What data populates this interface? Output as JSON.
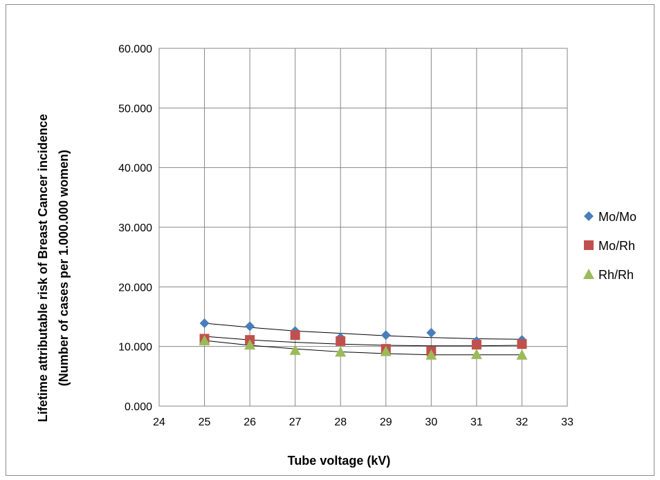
{
  "chart_data": {
    "type": "scatter",
    "xlabel": "Tube voltage (kV)",
    "ylabel_line1": "Lifetime attributable risk of Breast Cancer incidence",
    "ylabel_line2": "(Number of cases per 1.000.000 women)",
    "xlim": [
      24,
      33
    ],
    "ylim": [
      0,
      60
    ],
    "x_ticks": [
      24,
      25,
      26,
      27,
      28,
      29,
      30,
      31,
      32,
      33
    ],
    "y_ticks": [
      0,
      10,
      20,
      30,
      40,
      50,
      60
    ],
    "y_tick_labels": [
      "0.000",
      "10.000",
      "20.000",
      "30.000",
      "40.000",
      "50.000",
      "60.000"
    ],
    "grid": true,
    "legend_position": "right",
    "series": [
      {
        "name": "Mo/Mo",
        "marker": "diamond",
        "color": "#4a7ebb",
        "x": [
          25,
          26,
          27,
          28,
          29,
          30,
          31,
          32
        ],
        "y": [
          13.9,
          13.4,
          12.6,
          11.5,
          11.9,
          12.3,
          10.9,
          11.1
        ],
        "trend": [
          13.9,
          13.2,
          12.6,
          12.2,
          11.8,
          11.5,
          11.3,
          11.2
        ]
      },
      {
        "name": "Mo/Rh",
        "marker": "square",
        "color": "#c0504d",
        "x": [
          25,
          26,
          27,
          28,
          29,
          30,
          31,
          32
        ],
        "y": [
          11.3,
          11.1,
          11.9,
          10.9,
          9.6,
          9.2,
          10.3,
          10.4
        ],
        "trend": [
          11.7,
          11.1,
          10.7,
          10.4,
          10.2,
          10.1,
          10.1,
          10.2
        ]
      },
      {
        "name": "Rh/Rh",
        "marker": "triangle",
        "color": "#9bbb59",
        "x": [
          25,
          26,
          27,
          28,
          29,
          30,
          31,
          32
        ],
        "y": [
          11.0,
          10.3,
          9.4,
          9.1,
          9.2,
          8.6,
          8.7,
          8.6
        ],
        "trend": [
          11.0,
          10.2,
          9.6,
          9.1,
          8.8,
          8.6,
          8.6,
          8.6
        ]
      }
    ]
  }
}
